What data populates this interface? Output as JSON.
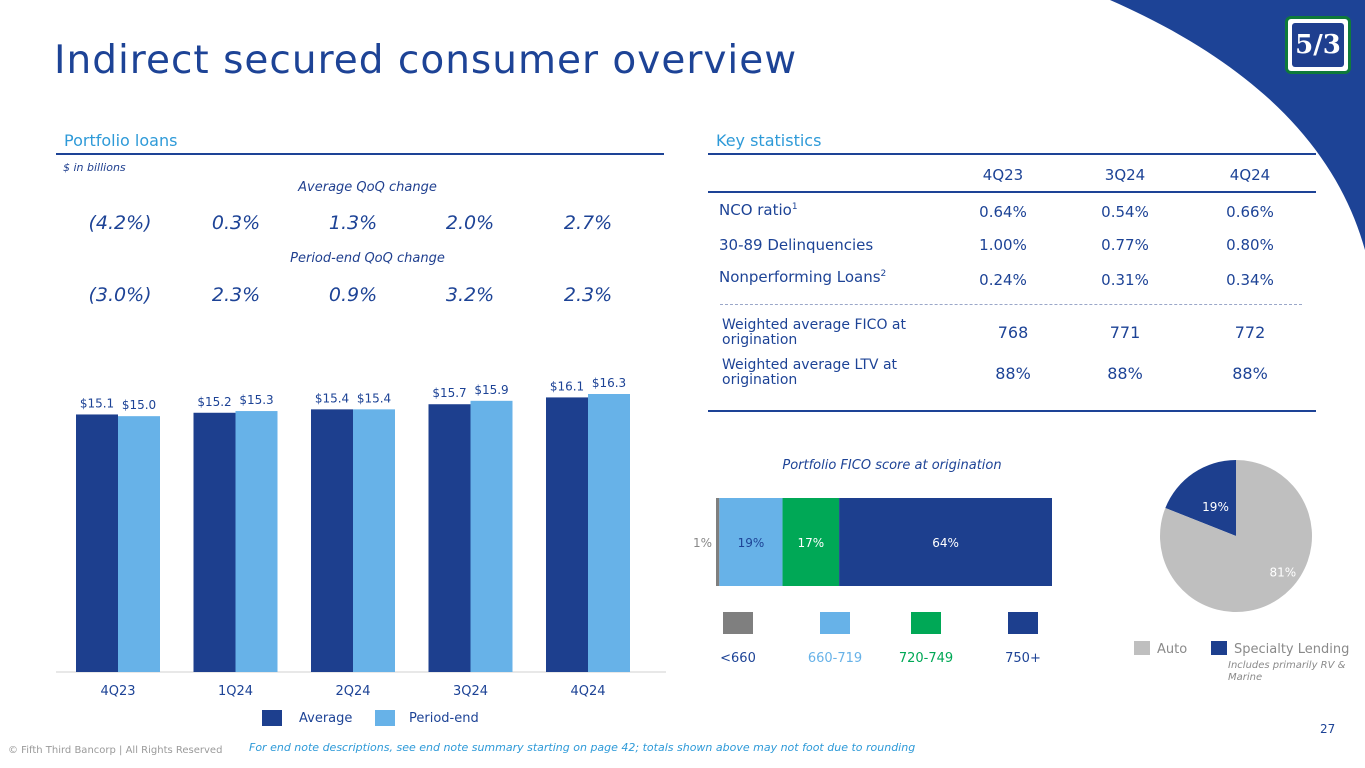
{
  "page": {
    "title": "Indirect secured consumer overview",
    "page_number": "27",
    "footer_left": "© Fifth Third Bancorp | All Rights Reserved",
    "footer_note": "For end note descriptions, see end note summary starting on page 42; totals shown above may not foot due to rounding",
    "logo_text": "5/3"
  },
  "portfolio": {
    "title": "Portfolio loans",
    "units": "$ in billions",
    "avg_qoq_label": "Average QoQ change",
    "avg_qoq": [
      "(4.2%)",
      "0.3%",
      "1.3%",
      "2.0%",
      "2.7%"
    ],
    "pe_qoq_label": "Period-end QoQ change",
    "pe_qoq": [
      "(3.0%)",
      "2.3%",
      "0.9%",
      "3.2%",
      "2.3%"
    ],
    "legend_average": "Average",
    "legend_period_end": "Period-end"
  },
  "key_stats": {
    "title": "Key statistics",
    "headers": [
      "4Q23",
      "3Q24",
      "4Q24"
    ],
    "rows": [
      {
        "label": "NCO ratio",
        "sup": "1",
        "values": [
          "0.64%",
          "0.54%",
          "0.66%"
        ]
      },
      {
        "label": "30-89 Delinquencies",
        "sup": "",
        "values": [
          "1.00%",
          "0.77%",
          "0.80%"
        ]
      },
      {
        "label": "Nonperforming Loans",
        "sup": "2",
        "values": [
          "0.24%",
          "0.31%",
          "0.34%"
        ]
      }
    ],
    "rows2": [
      {
        "label": "Weighted average FICO at origination",
        "values": [
          "768",
          "771",
          "772"
        ]
      },
      {
        "label": "Weighted average LTV at origination",
        "values": [
          "88%",
          "88%",
          "88%"
        ]
      }
    ]
  },
  "colors": {
    "dark_blue": "#1d3f8e",
    "light_blue": "#67b2e8",
    "green": "#00a856",
    "gray": "#7f7f7f",
    "pie_gray": "#bfbfbf"
  },
  "chart_data": [
    {
      "type": "bar",
      "title": "Portfolio loans",
      "ylabel": "$ in billions",
      "categories": [
        "4Q23",
        "1Q24",
        "2Q24",
        "3Q24",
        "4Q24"
      ],
      "series": [
        {
          "name": "Average",
          "values": [
            15.1,
            15.2,
            15.4,
            15.7,
            16.1
          ],
          "labels": [
            "$15.1",
            "$15.2",
            "$15.4",
            "$15.7",
            "$16.1"
          ]
        },
        {
          "name": "Period-end",
          "values": [
            15.0,
            15.3,
            15.4,
            15.9,
            16.3
          ],
          "labels": [
            "$15.0",
            "$15.3",
            "$15.4",
            "$15.9",
            "$16.3"
          ]
        }
      ],
      "ylim": [
        0,
        16.3
      ]
    },
    {
      "type": "bar",
      "title": "Portfolio FICO score at origination",
      "orientation": "horizontal-stacked",
      "segments": [
        {
          "name": "<660",
          "value": 1,
          "label": "1%"
        },
        {
          "name": "660-719",
          "value": 19,
          "label": "19%"
        },
        {
          "name": "720-749",
          "value": 17,
          "label": "17%"
        },
        {
          "name": "750+",
          "value": 64,
          "label": "64%"
        }
      ]
    },
    {
      "type": "pie",
      "title": "",
      "slices": [
        {
          "name": "Auto",
          "value": 81,
          "label": "81%"
        },
        {
          "name": "Specialty Lending",
          "value": 19,
          "label": "19%"
        }
      ],
      "note": "Includes primarily RV & Marine"
    }
  ]
}
